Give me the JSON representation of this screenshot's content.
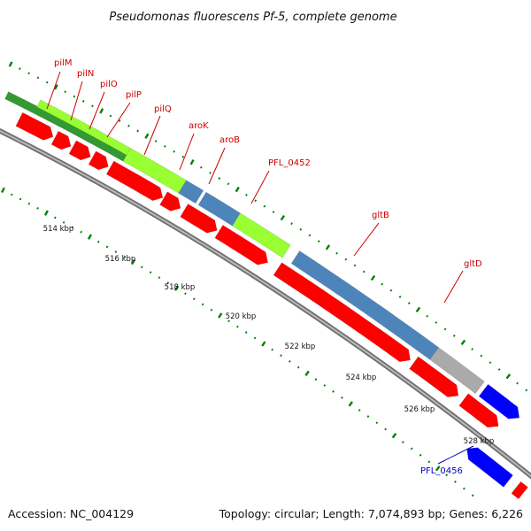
{
  "header": {
    "title": "Pseudomonas fluorescens Pf-5, complete genome"
  },
  "footer": {
    "accession": "Accession: NC_004129",
    "topology": "Topology: circular; Length: 7,074,893 bp; Genes: 6,226"
  },
  "colors": {
    "cds": "#ff0000",
    "green": "#99ff33",
    "darkgreen": "#339933",
    "blue": "#0000ff",
    "steel": "#4d85bb",
    "gray": "#aaaaaa",
    "backbone": "#888888",
    "tick": "#008000",
    "label_red": "#cc0000",
    "label_blue": "#0000cc"
  },
  "scale_labels": [
    "514 kbp",
    "516 kbp",
    "518 kbp",
    "520 kbp",
    "522 kbp",
    "524 kbp",
    "526 kbp",
    "528 kbp"
  ],
  "gene_labels": [
    {
      "text": "pilM",
      "color": "label_red"
    },
    {
      "text": "pilN",
      "color": "label_red"
    },
    {
      "text": "pilO",
      "color": "label_red"
    },
    {
      "text": "pilP",
      "color": "label_red"
    },
    {
      "text": "pilQ",
      "color": "label_red"
    },
    {
      "text": "aroK",
      "color": "label_red"
    },
    {
      "text": "aroB",
      "color": "label_red"
    },
    {
      "text": "PFL_0452",
      "color": "label_red"
    },
    {
      "text": "gltB",
      "color": "label_red"
    },
    {
      "text": "gltD",
      "color": "label_red"
    },
    {
      "text": "PFL_0456",
      "color": "label_blue"
    }
  ]
}
